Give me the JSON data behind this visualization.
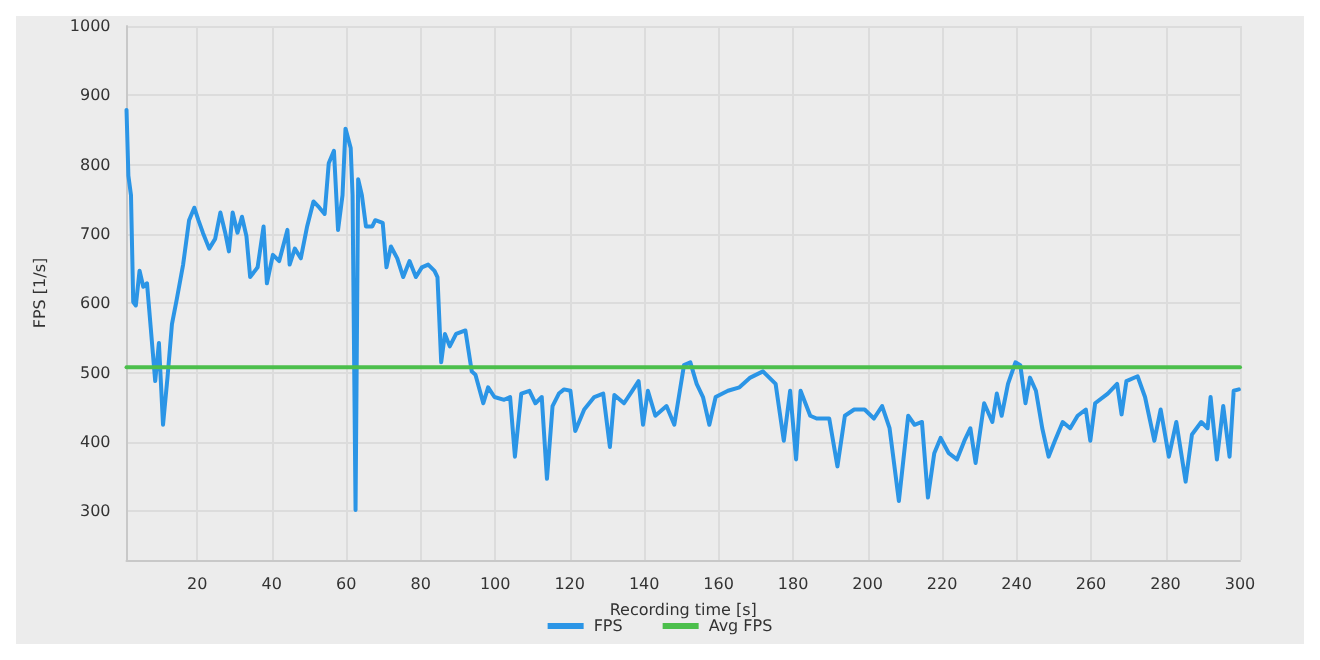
{
  "chart_data": {
    "type": "line",
    "xlabel": "Recording time [s]",
    "ylabel": "FPS [1/s]",
    "xlim": [
      1,
      300
    ],
    "xticks": [
      20,
      40,
      60,
      80,
      100,
      120,
      140,
      160,
      180,
      200,
      220,
      240,
      260,
      280,
      300
    ],
    "ylim": [
      230,
      1000
    ],
    "yticks": [
      300,
      400,
      500,
      600,
      700,
      800,
      900,
      1000
    ],
    "grid": true,
    "legend": "bottom",
    "marker": "none",
    "line_style": "solid",
    "series": [
      {
        "name": "FPS",
        "color": "#2b95e6",
        "x": [
          1,
          1.5,
          2.2,
          2.8,
          3.5,
          4.5,
          5.5,
          6.5,
          7.5,
          8.7,
          9.7,
          10.8,
          12,
          13.2,
          14.5,
          16.2,
          17.8,
          19.2,
          20.3,
          21.5,
          23.2,
          24.8,
          26.2,
          27.5,
          28.5,
          29.5,
          30.8,
          32,
          33.2,
          34.2,
          36.2,
          37.8,
          38.7,
          40.3,
          42,
          44.2,
          44.8,
          46.2,
          47.8,
          49.5,
          51.2,
          52.8,
          54.2,
          55.3,
          56.7,
          57.8,
          59,
          59.8,
          61.2,
          61.7,
          62.5,
          63.2,
          64.2,
          65.3,
          67,
          67.8,
          69.8,
          70.8,
          72,
          73.7,
          75.3,
          77,
          78.7,
          80.3,
          82,
          83.7,
          84.5,
          85.5,
          86.5,
          87.8,
          89.5,
          92,
          93.7,
          94.7,
          96.8,
          98.1,
          99.8,
          102.4,
          104,
          105.3,
          107,
          109.2,
          110.8,
          112.5,
          113.9,
          115.4,
          117.1,
          118.5,
          120.2,
          121.5,
          123.9,
          126.6,
          129,
          130.8,
          132,
          134.6,
          136.8,
          138.5,
          139.7,
          141,
          143,
          146,
          148.1,
          150.7,
          152.4,
          154.1,
          155.8,
          157.5,
          159.2,
          162.5,
          165.6,
          168.5,
          171.9,
          173.6,
          175.3,
          177.5,
          179.2,
          180.8,
          182,
          184.6,
          186.3,
          189.7,
          191.9,
          193.9,
          196.4,
          199.2,
          201.7,
          203.9,
          205.9,
          208.4,
          210.9,
          212.6,
          214.6,
          216.2,
          217.9,
          219.6,
          221.8,
          224,
          226,
          227.6,
          229,
          231.3,
          233.5,
          234.7,
          236,
          237.7,
          239.7,
          241,
          242.4,
          243.6,
          245.2,
          246.9,
          248.6,
          250.3,
          252.4,
          254.4,
          256.4,
          258.6,
          259.8,
          261.1,
          264.5,
          267,
          268.2,
          269.5,
          272.5,
          274.5,
          277,
          278.7,
          280.9,
          282.9,
          285.4,
          287.1,
          289.6,
          291.3,
          292.1,
          293.8,
          295.5,
          297.2,
          298.3,
          299.7
        ],
        "values": [
          879,
          784,
          756,
          602,
          597,
          647,
          624,
          629,
          565,
          488,
          543,
          425,
          493,
          570,
          606,
          656,
          720,
          738,
          720,
          702,
          679,
          693,
          731,
          702,
          675,
          731,
          702,
          725,
          697,
          638,
          652,
          711,
          629,
          670,
          661,
          706,
          656,
          679,
          665,
          711,
          747,
          738,
          729,
          802,
          820,
          706,
          756,
          852,
          824,
          756,
          302,
          779,
          756,
          711,
          711,
          720,
          716,
          652,
          682,
          665,
          638,
          661,
          638,
          652,
          656,
          647,
          638,
          515,
          556,
          538,
          556,
          561,
          502,
          497,
          456,
          479,
          465,
          461,
          465,
          379,
          470,
          474,
          456,
          465,
          347,
          452,
          470,
          476,
          474,
          416,
          447,
          465,
          470,
          393,
          468,
          456,
          474,
          488,
          425,
          474,
          438,
          452,
          425,
          511,
          515,
          484,
          465,
          425,
          465,
          474,
          479,
          493,
          502,
          493,
          484,
          402,
          474,
          375,
          474,
          438,
          434,
          434,
          365,
          438,
          447,
          447,
          434,
          452,
          420,
          315,
          438,
          425,
          429,
          320,
          384,
          406,
          384,
          375,
          402,
          420,
          370,
          456,
          429,
          470,
          438,
          484,
          515,
          511,
          456,
          493,
          474,
          420,
          379,
          402,
          429,
          420,
          438,
          447,
          402,
          456,
          470,
          484,
          440,
          488,
          495,
          465,
          402,
          447,
          379,
          429,
          343,
          411,
          429,
          420,
          465,
          375,
          452,
          379,
          474,
          476
        ]
      },
      {
        "name": "Avg FPS",
        "color": "#4cbf4c",
        "x": [
          1,
          300
        ],
        "values": [
          508,
          508
        ]
      }
    ]
  }
}
